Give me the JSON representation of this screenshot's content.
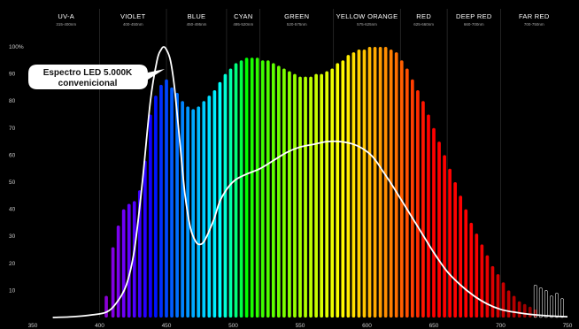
{
  "chart_data": {
    "type": "bar",
    "title": "",
    "xlabel": "",
    "ylabel": "",
    "xlim": [
      350,
      750
    ],
    "ylim": [
      0,
      100
    ],
    "x_ticks": [
      350,
      400,
      450,
      500,
      550,
      600,
      650,
      700,
      750
    ],
    "y_ticks": [
      10,
      20,
      30,
      40,
      50,
      60,
      70,
      80,
      90,
      100
    ],
    "y_tick_labels": [
      "10",
      "20",
      "30",
      "40",
      "50",
      "60",
      "70",
      "80",
      "90",
      "100%"
    ],
    "bands": [
      {
        "name": "UV-A",
        "range": "315-400nm",
        "start": 350,
        "end": 400
      },
      {
        "name": "VIOLET",
        "range": "400-450nm",
        "start": 400,
        "end": 450
      },
      {
        "name": "BLUE",
        "range": "450-495nm",
        "start": 450,
        "end": 495
      },
      {
        "name": "CYAN",
        "range": "495-520nm",
        "start": 495,
        "end": 520
      },
      {
        "name": "GREEN",
        "range": "520-575nm",
        "start": 520,
        "end": 575
      },
      {
        "name": "YELLOW ORANGE",
        "range": "575-625nm",
        "start": 575,
        "end": 625
      },
      {
        "name": "RED",
        "range": "625-660nm",
        "start": 625,
        "end": 660
      },
      {
        "name": "DEEP RED",
        "range": "660-700nm",
        "start": 660,
        "end": 700
      },
      {
        "name": "FAR RED",
        "range": "700-750nm",
        "start": 700,
        "end": 750
      }
    ],
    "series": [
      {
        "values": [
          [
            405,
            8
          ],
          [
            410,
            26
          ],
          [
            414,
            34
          ],
          [
            418,
            40
          ],
          [
            422,
            42
          ],
          [
            426,
            43
          ],
          [
            430,
            47
          ],
          [
            434,
            58
          ],
          [
            438,
            75
          ],
          [
            442,
            82
          ],
          [
            446,
            86
          ],
          [
            450,
            88
          ],
          [
            454,
            85
          ],
          [
            458,
            83
          ],
          [
            462,
            80
          ],
          [
            466,
            78
          ],
          [
            470,
            77
          ],
          [
            474,
            78
          ],
          [
            478,
            80
          ],
          [
            482,
            82
          ],
          [
            486,
            84
          ],
          [
            490,
            87
          ],
          [
            494,
            90
          ],
          [
            498,
            92
          ],
          [
            502,
            94
          ],
          [
            506,
            95
          ],
          [
            510,
            96
          ],
          [
            514,
            96
          ],
          [
            518,
            96
          ],
          [
            522,
            95
          ],
          [
            526,
            95
          ],
          [
            530,
            94
          ],
          [
            534,
            93
          ],
          [
            538,
            92
          ],
          [
            542,
            91
          ],
          [
            546,
            90
          ],
          [
            550,
            89
          ],
          [
            554,
            89
          ],
          [
            558,
            89
          ],
          [
            562,
            90
          ],
          [
            566,
            90
          ],
          [
            570,
            91
          ],
          [
            574,
            92
          ],
          [
            578,
            94
          ],
          [
            582,
            95
          ],
          [
            586,
            97
          ],
          [
            590,
            98
          ],
          [
            594,
            99
          ],
          [
            598,
            99
          ],
          [
            602,
            100
          ],
          [
            606,
            100
          ],
          [
            610,
            100
          ],
          [
            614,
            100
          ],
          [
            618,
            99
          ],
          [
            622,
            98
          ],
          [
            626,
            95
          ],
          [
            630,
            92
          ],
          [
            634,
            88
          ],
          [
            638,
            84
          ],
          [
            642,
            80
          ],
          [
            646,
            75
          ],
          [
            650,
            70
          ],
          [
            654,
            65
          ],
          [
            658,
            60
          ],
          [
            662,
            55
          ],
          [
            666,
            50
          ],
          [
            670,
            45
          ],
          [
            674,
            40
          ],
          [
            678,
            35
          ],
          [
            682,
            31
          ],
          [
            686,
            27
          ],
          [
            690,
            23
          ],
          [
            694,
            19
          ],
          [
            698,
            16
          ],
          [
            702,
            13
          ],
          [
            706,
            10
          ],
          [
            710,
            8
          ],
          [
            714,
            6
          ],
          [
            718,
            5
          ],
          [
            722,
            4
          ],
          [
            726,
            3
          ]
        ]
      },
      {
        "name": "Espectro LED 5.000K convenicional",
        "type": "line",
        "values": [
          [
            365,
            0
          ],
          [
            380,
            0.3
          ],
          [
            395,
            1
          ],
          [
            405,
            2
          ],
          [
            412,
            5
          ],
          [
            420,
            12
          ],
          [
            426,
            25
          ],
          [
            432,
            50
          ],
          [
            438,
            80
          ],
          [
            443,
            95
          ],
          [
            446,
            99
          ],
          [
            448,
            100
          ],
          [
            450,
            99
          ],
          [
            453,
            95
          ],
          [
            456,
            85
          ],
          [
            460,
            65
          ],
          [
            464,
            45
          ],
          [
            468,
            33
          ],
          [
            472,
            28
          ],
          [
            475,
            27
          ],
          [
            478,
            28
          ],
          [
            482,
            32
          ],
          [
            486,
            37
          ],
          [
            490,
            43
          ],
          [
            496,
            48
          ],
          [
            502,
            51
          ],
          [
            510,
            53
          ],
          [
            520,
            55
          ],
          [
            530,
            58
          ],
          [
            540,
            61
          ],
          [
            550,
            63
          ],
          [
            560,
            64
          ],
          [
            570,
            65
          ],
          [
            580,
            65
          ],
          [
            590,
            64
          ],
          [
            598,
            62
          ],
          [
            605,
            59
          ],
          [
            612,
            54
          ],
          [
            620,
            48
          ],
          [
            630,
            40
          ],
          [
            640,
            32
          ],
          [
            650,
            24
          ],
          [
            660,
            17
          ],
          [
            670,
            12
          ],
          [
            680,
            8
          ],
          [
            690,
            5
          ],
          [
            700,
            3
          ],
          [
            710,
            2
          ],
          [
            725,
            1
          ],
          [
            740,
            0.5
          ],
          [
            750,
            0.3
          ]
        ]
      }
    ]
  }
}
